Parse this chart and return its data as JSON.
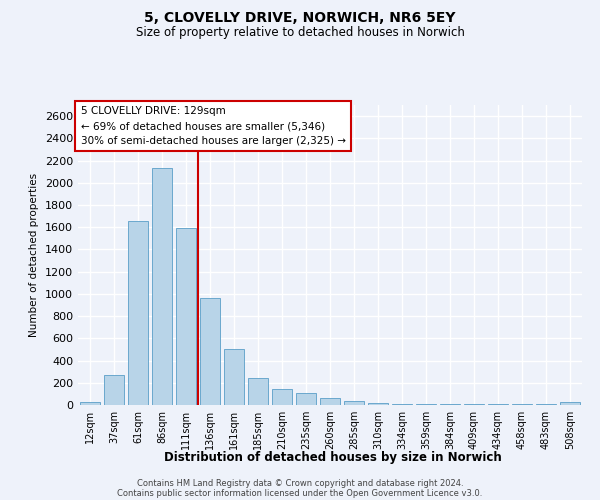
{
  "title1": "5, CLOVELLY DRIVE, NORWICH, NR6 5EY",
  "title2": "Size of property relative to detached houses in Norwich",
  "xlabel": "Distribution of detached houses by size in Norwich",
  "ylabel": "Number of detached properties",
  "categories": [
    "12sqm",
    "37sqm",
    "61sqm",
    "86sqm",
    "111sqm",
    "136sqm",
    "161sqm",
    "185sqm",
    "210sqm",
    "235sqm",
    "260sqm",
    "285sqm",
    "310sqm",
    "334sqm",
    "359sqm",
    "384sqm",
    "409sqm",
    "434sqm",
    "458sqm",
    "483sqm",
    "508sqm"
  ],
  "values": [
    30,
    270,
    1660,
    2130,
    1590,
    960,
    500,
    240,
    145,
    110,
    65,
    35,
    15,
    10,
    10,
    5,
    5,
    5,
    5,
    5,
    30
  ],
  "bar_color": "#b8d4e8",
  "bar_edge_color": "#5a9ec8",
  "red_line_x": 4.5,
  "annotation_line1": "5 CLOVELLY DRIVE: 129sqm",
  "annotation_line2": "← 69% of detached houses are smaller (5,346)",
  "annotation_line3": "30% of semi-detached houses are larger (2,325) →",
  "ylim": [
    0,
    2700
  ],
  "yticks": [
    0,
    200,
    400,
    600,
    800,
    1000,
    1200,
    1400,
    1600,
    1800,
    2000,
    2200,
    2400,
    2600
  ],
  "footer1": "Contains HM Land Registry data © Crown copyright and database right 2024.",
  "footer2": "Contains public sector information licensed under the Open Government Licence v3.0.",
  "bg_color": "#eef2fa",
  "grid_color": "#ffffff",
  "ann_bg": "#ffffff",
  "ann_edge": "#cc0000",
  "red_color": "#cc0000"
}
